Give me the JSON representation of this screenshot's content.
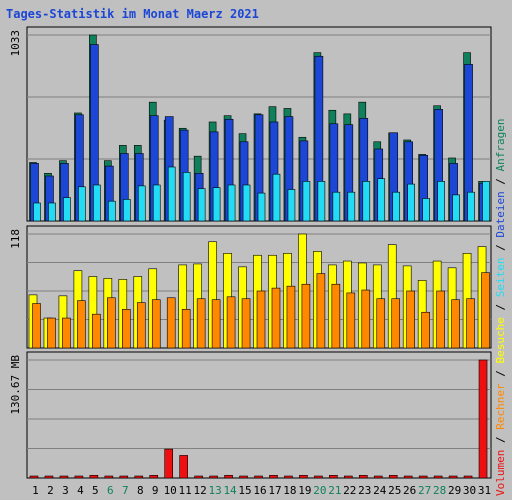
{
  "chart_data": {
    "type": "bar",
    "title": "Tages-Statistik im Monat Maerz 2021",
    "days": [
      "1",
      "2",
      "3",
      "4",
      "5",
      "6",
      "7",
      "8",
      "9",
      "10",
      "11",
      "12",
      "13",
      "14",
      "15",
      "16",
      "17",
      "18",
      "19",
      "20",
      "21",
      "22",
      "23",
      "24",
      "25",
      "26",
      "27",
      "28",
      "29",
      "30",
      "31"
    ],
    "weekend_days": [
      "6",
      "7",
      "13",
      "14",
      "20",
      "21",
      "27",
      "28"
    ],
    "panels": [
      {
        "ymax_label": "1033",
        "ymax": 1033,
        "legend": [
          "Anfragen",
          "Seiten",
          "Dateien"
        ],
        "series": [
          {
            "name": "Anfragen",
            "color": "#10805c",
            "values": [
              325,
              265,
              335,
              600,
              1033,
              335,
              420,
              420,
              660,
              560,
              515,
              360,
              550,
              585,
              485,
              595,
              635,
              625,
              465,
              935,
              615,
              595,
              660,
              440,
              490,
              450,
              370,
              640,
              350,
              935,
              220
            ]
          },
          {
            "name": "Dateien",
            "color": "#1c46d6",
            "values": [
              320,
              250,
              320,
              590,
              980,
              305,
              375,
              375,
              585,
              580,
              505,
              265,
              495,
              565,
              440,
              590,
              550,
              580,
              445,
              915,
              540,
              535,
              570,
              400,
              490,
              440,
              365,
              620,
              320,
              870,
              210
            ]
          },
          {
            "name": "Seiten",
            "color": "#22dbf5",
            "values": [
              100,
              100,
              130,
              190,
              200,
              110,
              120,
              195,
              200,
              300,
              270,
              180,
              185,
              200,
              200,
              155,
              260,
              175,
              220,
              220,
              160,
              160,
              220,
              235,
              160,
              205,
              125,
              220,
              145,
              160,
              220
            ]
          }
        ]
      },
      {
        "ymax_label": "118",
        "ymax": 118,
        "legend": [
          "Besuche",
          "Rechner"
        ],
        "series": [
          {
            "name": "Besuche",
            "color": "#ffff00",
            "values": [
              55,
              31,
              54,
              80,
              74,
              72,
              71,
              74,
              82,
              0,
              86,
              87,
              110,
              98,
              84,
              96,
              96,
              98,
              118,
              100,
              86,
              90,
              88,
              86,
              107,
              85,
              70,
              90,
              83,
              98,
              105
            ]
          },
          {
            "name": "Rechner",
            "color": "#ff8800",
            "values": [
              46,
              31,
              31,
              49,
              35,
              52,
              40,
              47,
              50,
              52,
              40,
              51,
              50,
              53,
              51,
              59,
              62,
              64,
              66,
              77,
              66,
              57,
              60,
              51,
              51,
              59,
              37,
              59,
              50,
              51,
              78
            ]
          }
        ]
      },
      {
        "ymax_label": "130.67 MB",
        "ymax": 130.67,
        "legend": [
          "Volumen"
        ],
        "series": [
          {
            "name": "Volumen",
            "color": "#ee1010",
            "values": [
              2,
              2,
              2,
              2,
              3,
              2,
              2,
              2,
              3,
              32,
              25,
              2,
              2,
              3,
              2,
              2,
              3,
              2,
              3,
              2,
              3,
              2,
              3,
              2,
              3,
              2,
              2,
              2,
              2,
              2,
              130.67
            ]
          }
        ]
      }
    ],
    "legend_right": [
      "Volumen",
      "Rechner",
      "Besuche",
      "Seiten",
      "Dateien",
      "Anfragen"
    ]
  },
  "colors": {
    "background": "#c0c0c0",
    "panel": "#c0c0c0",
    "title": "#1c46d6",
    "weekday_label": "#000000",
    "weekend_label": "#10805c",
    "separator": "#a0a0a0"
  }
}
